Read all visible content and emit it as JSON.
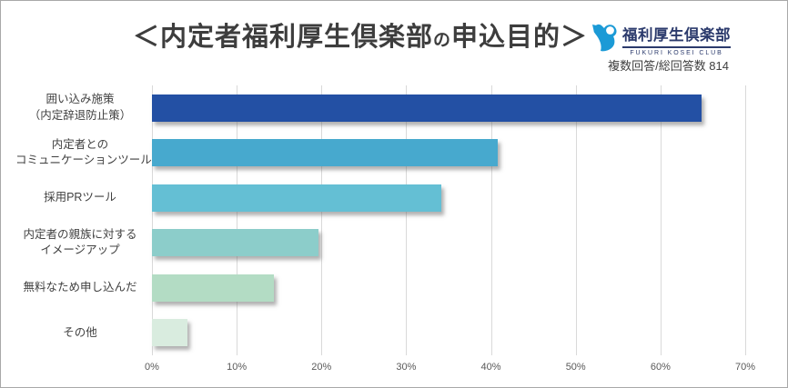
{
  "window": {
    "background": "#ffffff",
    "border_color": "#a8a8a8"
  },
  "header": {
    "title_prefix": "＜内定者福利厚生倶楽部",
    "title_small": "の",
    "title_suffix": "申込目的＞",
    "title_color": "#3d3d3d",
    "response_note": "複数回答/総回答数 814"
  },
  "logo": {
    "name": "福利厚生倶楽部",
    "tagline": "FUKURI KOSEI CLUB",
    "text_color": "#2b3a6c",
    "icon": "person-swoosh-icon",
    "icon_color": "#1b9ad6"
  },
  "chart_data": {
    "type": "bar",
    "orientation": "horizontal",
    "title": "＜内定者福利厚生倶楽部の申込目的＞",
    "note": "複数回答/総回答数 814",
    "categories": [
      {
        "lines": [
          "囲い込み施策",
          "（内定辞退防止策）"
        ]
      },
      {
        "lines": [
          "内定者との",
          "コミュニケーションツール"
        ]
      },
      {
        "lines": [
          "採用PRツール"
        ]
      },
      {
        "lines": [
          "内定者の親族に対する",
          "イメージアップ"
        ]
      },
      {
        "lines": [
          "無料なため申し込んだ"
        ]
      },
      {
        "lines": [
          "その他"
        ]
      }
    ],
    "values": [
      64.8,
      40.8,
      34.1,
      19.6,
      14.4,
      4.2
    ],
    "unit": "%",
    "bar_colors": [
      "#2350a4",
      "#47a9ce",
      "#64bfd4",
      "#8ccdca",
      "#b3dcc4",
      "#d9ecdf"
    ],
    "x_ticks": [
      "0%",
      "10%",
      "20%",
      "30%",
      "40%",
      "50%",
      "60%",
      "70%"
    ],
    "xlim": [
      0,
      70
    ],
    "grid": true,
    "gridline_color": "#d9d9d9",
    "tick_color": "#595959",
    "label_color": "#404040",
    "legend": "none"
  }
}
